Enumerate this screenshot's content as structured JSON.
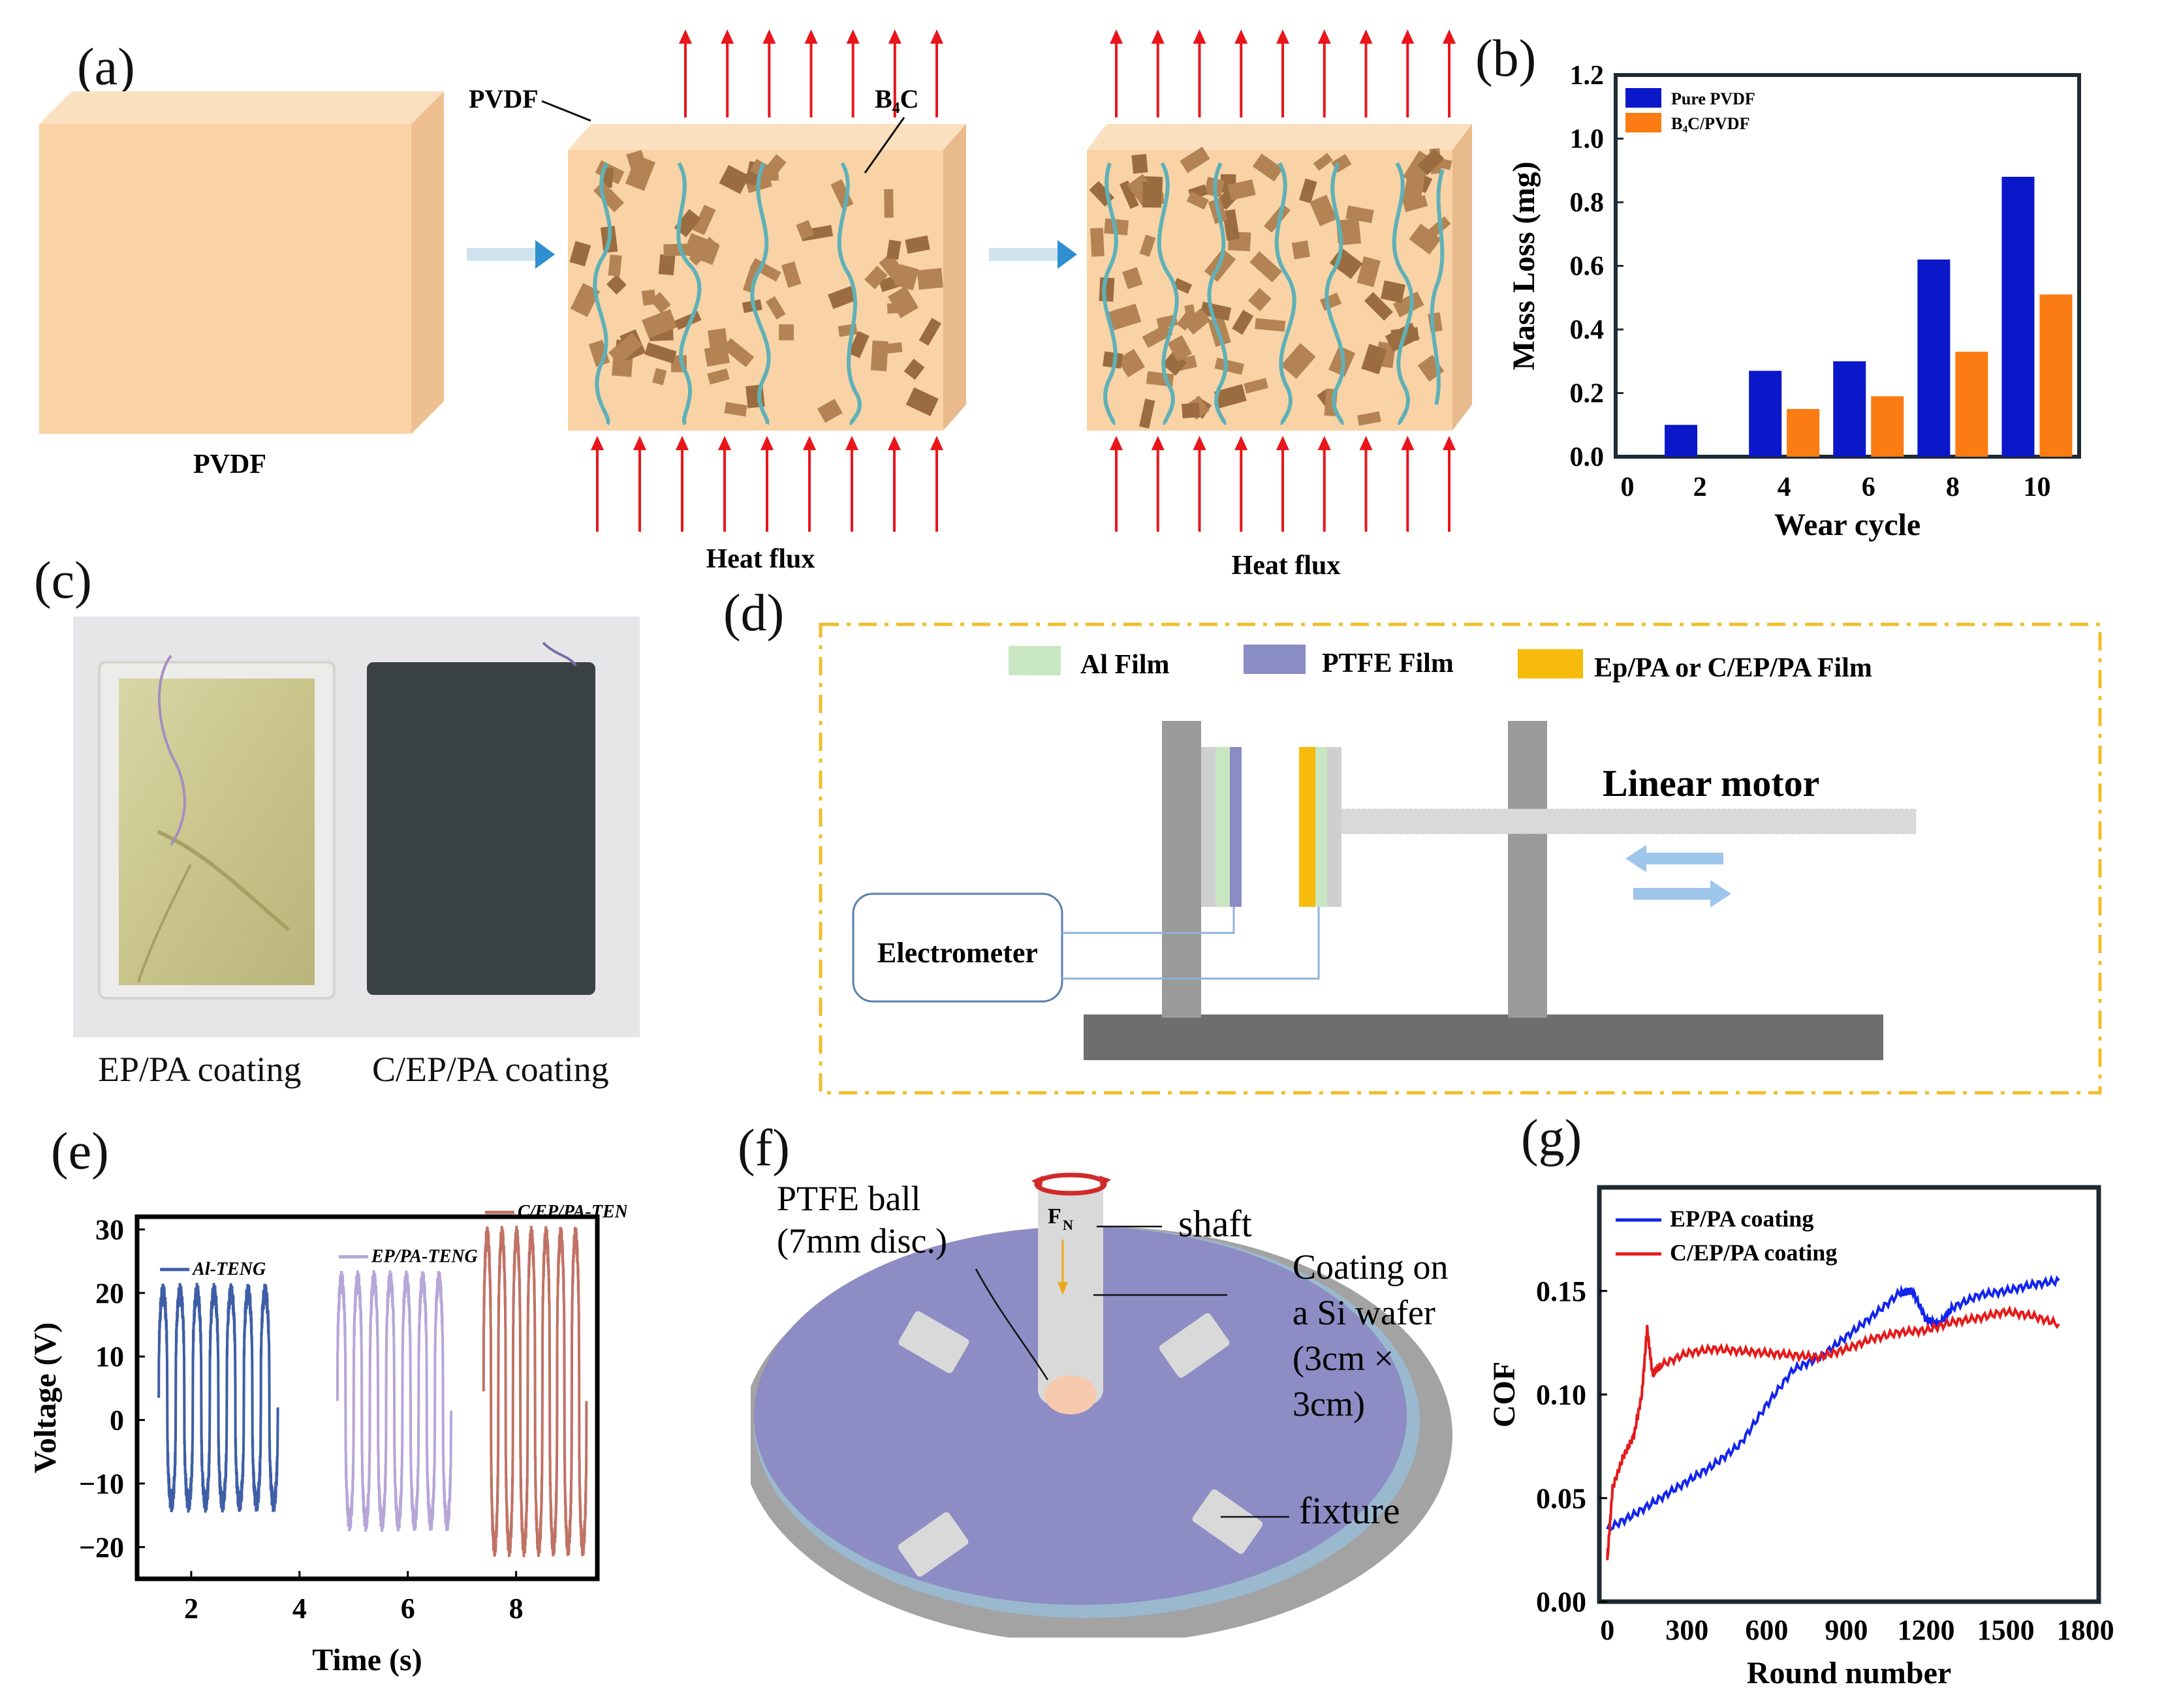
{
  "panel_labels": {
    "a": "(a)",
    "b": "(b)",
    "c": "(c)",
    "d": "(d)",
    "e": "(e)",
    "f": "(f)",
    "g": "(g)"
  },
  "panel_a": {
    "pvdf_block_label": "PVDF",
    "pvdf_pointer": "PVDF",
    "b4c_pointer": "B₄C",
    "heat_flux_1": "Heat flux",
    "heat_flux_2": "Heat flux",
    "colors": {
      "block_face": "#f9d3a6",
      "block_side": "#eebf91",
      "particle": "#b38354",
      "chain": "#5fb1b8",
      "arrow": "#e8161b",
      "flow_arrow": "#4aa6d8"
    }
  },
  "panel_c": {
    "caption_left": "EP/PA coating",
    "caption_right": "C/EP/PA coating"
  },
  "panel_d": {
    "legend": [
      {
        "label": "Al Film",
        "color": "#c9e6c3"
      },
      {
        "label": "PTFE Film",
        "color": "#8a8cc4"
      },
      {
        "label": "Ep/PA or C/EP/PA Film",
        "color": "#f7bb0c"
      }
    ],
    "linear_motor": "Linear motor",
    "electrometer": "Electrometer",
    "colors": {
      "frame_border": "#f0be2a",
      "structure": "#9a9a9a",
      "base": "#6e6e6e",
      "arrow": "#9ec5ea"
    }
  },
  "panel_f": {
    "ball_label": [
      "PTFE ball",
      "(7mm disc.)"
    ],
    "fn_label": "F",
    "fn_sub": "N",
    "shaft_label": "shaft",
    "coating_label": [
      "Coating on",
      "a Si wafer",
      "(3cm ×",
      "3cm)"
    ],
    "fixture_label": "fixture",
    "colors": {
      "disc": "#8d8cc4",
      "base": "#a3a3a3",
      "shaft": "#d9d9d9",
      "ball": "#f7c9ae"
    }
  },
  "chart_data": [
    {
      "id": "b",
      "type": "bar",
      "x": [
        2,
        4,
        6,
        8,
        10
      ],
      "series": [
        {
          "name": "Pure PVDF",
          "values": [
            0.1,
            0.27,
            0.3,
            0.62,
            0.88
          ],
          "color": "#0a18c9"
        },
        {
          "name": "B₄C/PVDF",
          "values": [
            null,
            0.15,
            0.19,
            0.33,
            0.51
          ],
          "color": "#fb7c12"
        }
      ],
      "xlabel": "Wear cycle",
      "ylabel": "Mass Loss (mg)",
      "xticks": [
        "0",
        "2",
        "4",
        "6",
        "8",
        "10"
      ],
      "yticks": [
        "0.0",
        "0.2",
        "0.4",
        "0.6",
        "0.8",
        "1.0",
        "1.2"
      ],
      "xlim": [
        0,
        11
      ],
      "ylim": [
        0,
        1.2
      ],
      "legend_position": "top-left"
    },
    {
      "id": "e",
      "type": "line",
      "xlabel": "Time (s)",
      "ylabel": "Voltage (V)",
      "xticks": [
        "2",
        "4",
        "6",
        "8"
      ],
      "yticks": [
        "30",
        "20",
        "10",
        "0",
        "−10",
        "−20"
      ],
      "xlim": [
        1,
        9.5
      ],
      "ylim": [
        -25,
        32
      ],
      "series": [
        {
          "name": "Al-TENG",
          "color": "#3e5ea6",
          "t_range": [
            1.4,
            3.6
          ],
          "high": 20,
          "low": -13,
          "cycles": 7
        },
        {
          "name": "EP/PA-TENG",
          "color": "#b7a6d8",
          "t_range": [
            4.7,
            6.8
          ],
          "high": 22,
          "low": -16,
          "cycles": 7
        },
        {
          "name": "C/EP/PA-TENG",
          "color": "#c07265",
          "t_range": [
            7.4,
            9.3
          ],
          "high": 29,
          "low": -20,
          "cycles": 7
        }
      ]
    },
    {
      "id": "g",
      "type": "line",
      "xlabel": "Round number",
      "ylabel": "COF",
      "xticks": [
        "0",
        "300",
        "600",
        "900",
        "1200",
        "1500",
        "1800"
      ],
      "yticks": [
        "0.00",
        "0.05",
        "0.10",
        "0.15"
      ],
      "xlim": [
        -30,
        1850
      ],
      "ylim": [
        0,
        0.2
      ],
      "legend_position": "top-left",
      "series": [
        {
          "name": "EP/PA coating",
          "color": "#1224ee",
          "x": [
            0,
            100,
            200,
            300,
            400,
            500,
            600,
            700,
            800,
            900,
            1000,
            1100,
            1150,
            1200,
            1250,
            1300,
            1400,
            1500,
            1600,
            1700
          ],
          "y": [
            0.035,
            0.042,
            0.05,
            0.058,
            0.066,
            0.076,
            0.095,
            0.112,
            0.118,
            0.128,
            0.138,
            0.149,
            0.15,
            0.136,
            0.134,
            0.142,
            0.148,
            0.15,
            0.153,
            0.155
          ]
        },
        {
          "name": "C/EP/PA coating",
          "color": "#e51a1a",
          "x": [
            0,
            20,
            60,
            100,
            130,
            150,
            170,
            200,
            300,
            400,
            500,
            600,
            700,
            800,
            900,
            1000,
            1100,
            1200,
            1300,
            1400,
            1500,
            1600,
            1700
          ],
          "y": [
            0.02,
            0.055,
            0.07,
            0.08,
            0.1,
            0.132,
            0.11,
            0.114,
            0.12,
            0.122,
            0.121,
            0.12,
            0.119,
            0.118,
            0.122,
            0.127,
            0.13,
            0.131,
            0.135,
            0.137,
            0.14,
            0.138,
            0.134
          ]
        }
      ]
    }
  ]
}
